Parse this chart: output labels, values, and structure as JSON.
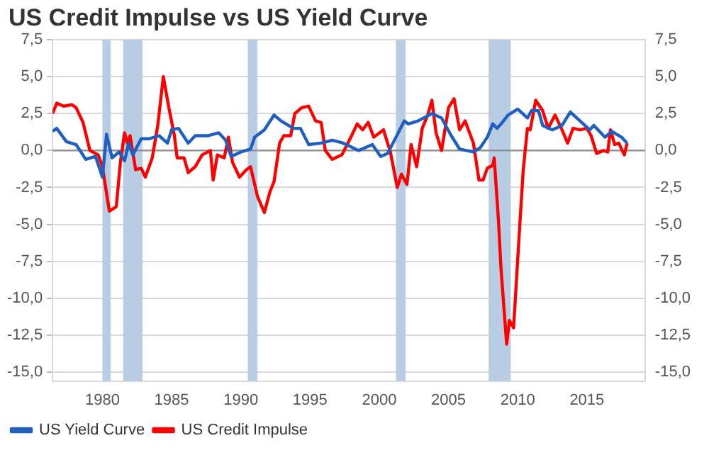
{
  "chart_data": {
    "type": "line",
    "title": "US Credit Impulse vs US Yield Curve",
    "xlim": [
      1976.4,
      2019.2
    ],
    "xticks": [
      1980,
      1985,
      1990,
      1995,
      2000,
      2005,
      2010,
      2015
    ],
    "ylim": [
      -15.6,
      7.5
    ],
    "yticks": [
      {
        "value": -15,
        "label": "-15,0"
      },
      {
        "value": -12.5,
        "label": "-12,5"
      },
      {
        "value": -10,
        "label": "-10,0"
      },
      {
        "value": -7.5,
        "label": "-7,5"
      },
      {
        "value": -5,
        "label": "-5,0"
      },
      {
        "value": -2.5,
        "label": "-2,5"
      },
      {
        "value": 0,
        "label": "0,0"
      },
      {
        "value": 2.5,
        "label": "2,5"
      },
      {
        "value": 5,
        "label": "5,0"
      },
      {
        "value": 7.5,
        "label": "7,5"
      }
    ],
    "y2lim": [
      -15.6,
      7.5
    ],
    "y2ticks": [
      {
        "value": -15,
        "label": "-15,0"
      },
      {
        "value": -12.5,
        "label": "-12,5"
      },
      {
        "value": -10,
        "label": "-10,0"
      },
      {
        "value": -7.5,
        "label": "-7,5"
      },
      {
        "value": -5,
        "label": "-5,0"
      },
      {
        "value": -2.5,
        "label": "-2,5"
      },
      {
        "value": 0,
        "label": "0,0"
      },
      {
        "value": 2.5,
        "label": "2,5"
      },
      {
        "value": 5,
        "label": "5,0"
      },
      {
        "value": 7.5,
        "label": "7,5"
      }
    ],
    "grid": "y",
    "legend": "bottom left",
    "marker": "none",
    "line_style": "solid",
    "bands": [
      {
        "axis": "x",
        "from": 1980.0,
        "to": 1980.6,
        "color": "#b8cce4"
      },
      {
        "axis": "x",
        "from": 1981.5,
        "to": 1982.9,
        "color": "#b8cce4"
      },
      {
        "axis": "x",
        "from": 1990.5,
        "to": 1991.2,
        "color": "#b8cce4"
      },
      {
        "axis": "x",
        "from": 2001.2,
        "to": 2001.9,
        "color": "#b8cce4"
      },
      {
        "axis": "x",
        "from": 2007.9,
        "to": 2009.5,
        "color": "#b8cce4"
      }
    ],
    "ref_lines": [
      {
        "axis": "y",
        "value": 0,
        "color": "#8c8c8c"
      }
    ],
    "series": [
      {
        "name": "US Yield Curve",
        "color": "#1f5fbf",
        "x": [
          1976.4,
          1976.7,
          1977.4,
          1978.1,
          1978.8,
          1979.5,
          1980.0,
          1980.3,
          1980.7,
          1981.2,
          1981.6,
          1981.9,
          1982.2,
          1982.8,
          1983.4,
          1984.1,
          1984.7,
          1985.0,
          1985.5,
          1986.2,
          1986.7,
          1987.6,
          1988.4,
          1988.9,
          1989.3,
          1990.0,
          1990.7,
          1991.0,
          1991.7,
          1992.4,
          1992.9,
          1993.8,
          1994.3,
          1994.9,
          1995.8,
          1996.6,
          1997.4,
          1998.5,
          1999.5,
          2000.1,
          2000.6,
          2001.1,
          2001.8,
          2002.1,
          2002.8,
          2003.8,
          2004.5,
          2005.2,
          2005.8,
          2006.8,
          2007.3,
          2007.8,
          2008.2,
          2008.5,
          2008.8,
          2009.3,
          2010.0,
          2010.7,
          2011.0,
          2011.5,
          2011.8,
          2012.5,
          2013.2,
          2013.8,
          2014.5,
          2015.2,
          2015.5,
          2016.3,
          2016.8,
          2017.5,
          2017.9
        ],
        "values": [
          1.3,
          1.5,
          0.6,
          0.4,
          -0.6,
          -0.4,
          -1.8,
          1.1,
          -0.5,
          -0.1,
          -0.7,
          0.5,
          -0.3,
          0.8,
          0.8,
          1.0,
          0.5,
          1.4,
          1.5,
          0.5,
          1.0,
          1.0,
          1.2,
          0.7,
          -0.4,
          -0.1,
          0.1,
          0.9,
          1.4,
          2.4,
          2.0,
          1.5,
          1.5,
          0.4,
          0.5,
          0.7,
          0.5,
          0.0,
          0.4,
          -0.4,
          -0.2,
          0.7,
          2.0,
          1.8,
          2.0,
          2.5,
          2.2,
          1.0,
          0.1,
          -0.1,
          0.2,
          0.9,
          1.8,
          1.5,
          1.8,
          2.4,
          2.8,
          2.2,
          2.7,
          2.7,
          1.7,
          1.4,
          1.7,
          2.6,
          2.0,
          1.4,
          1.7,
          0.9,
          1.3,
          0.9,
          0.5
        ]
      },
      {
        "name": "US Credit Impulse",
        "color": "#ff0000",
        "x": [
          1976.4,
          1976.7,
          1977.2,
          1977.8,
          1978.1,
          1978.6,
          1979.1,
          1979.7,
          1980.0,
          1980.5,
          1981.0,
          1981.3,
          1981.6,
          1981.8,
          1982.0,
          1982.4,
          1982.8,
          1983.1,
          1983.6,
          1984.0,
          1984.4,
          1984.8,
          1985.2,
          1985.4,
          1985.9,
          1986.2,
          1986.7,
          1987.2,
          1987.8,
          1988.0,
          1988.3,
          1988.8,
          1989.1,
          1989.4,
          1989.9,
          1990.4,
          1990.7,
          1991.2,
          1991.7,
          1992.1,
          1992.4,
          1992.8,
          1993.1,
          1993.6,
          1993.9,
          1994.4,
          1994.9,
          1995.4,
          1995.8,
          1996.1,
          1996.6,
          1997.3,
          1998.0,
          1998.4,
          1998.8,
          1999.2,
          1999.6,
          2000.3,
          2000.8,
          2001.3,
          2001.6,
          2002.0,
          2002.3,
          2002.7,
          2003.1,
          2003.5,
          2003.8,
          2004.1,
          2004.5,
          2005.0,
          2005.4,
          2005.8,
          2006.2,
          2006.8,
          2007.2,
          2007.5,
          2007.8,
          2008.2,
          2008.3,
          2008.6,
          2008.8,
          2009.2,
          2009.4,
          2009.7,
          2010.1,
          2010.4,
          2010.7,
          2010.9,
          2011.3,
          2011.8,
          2012.2,
          2012.7,
          2013.2,
          2013.6,
          2014.0,
          2014.5,
          2015.0,
          2015.3,
          2015.7,
          2016.2,
          2016.5,
          2016.7,
          2017.0,
          2017.3,
          2017.7,
          2017.9
        ],
        "values": [
          2.5,
          3.2,
          3.0,
          3.1,
          2.9,
          1.9,
          0.0,
          -0.3,
          -1.1,
          -4.1,
          -3.8,
          -0.8,
          1.2,
          0.5,
          1.0,
          -1.3,
          -1.2,
          -1.8,
          -0.5,
          1.7,
          5.0,
          2.9,
          1.0,
          -0.5,
          -0.5,
          -1.5,
          -1.1,
          -0.3,
          0.0,
          -2.0,
          -0.3,
          -0.5,
          0.9,
          -0.8,
          -1.8,
          -1.3,
          -1.1,
          -3.1,
          -4.2,
          -2.8,
          -2.1,
          0.5,
          1.0,
          1.0,
          2.5,
          2.9,
          3.0,
          2.0,
          1.9,
          0.0,
          -0.6,
          -0.3,
          1.0,
          1.8,
          1.4,
          1.9,
          0.9,
          1.4,
          -0.1,
          -2.5,
          -1.6,
          -2.3,
          0.4,
          -1.1,
          1.5,
          2.4,
          3.4,
          1.2,
          0.0,
          2.9,
          3.5,
          1.4,
          2.0,
          0.5,
          -2.0,
          -2.0,
          -1.2,
          -1.0,
          -0.5,
          -4.6,
          -8.1,
          -13.1,
          -11.5,
          -12.0,
          -5.8,
          -1.3,
          1.5,
          1.4,
          3.4,
          2.7,
          1.5,
          2.4,
          1.4,
          0.5,
          1.5,
          1.4,
          1.5,
          1.0,
          -0.2,
          0.0,
          -0.1,
          1.4,
          0.4,
          0.5,
          -0.3,
          0.5
        ]
      }
    ]
  }
}
